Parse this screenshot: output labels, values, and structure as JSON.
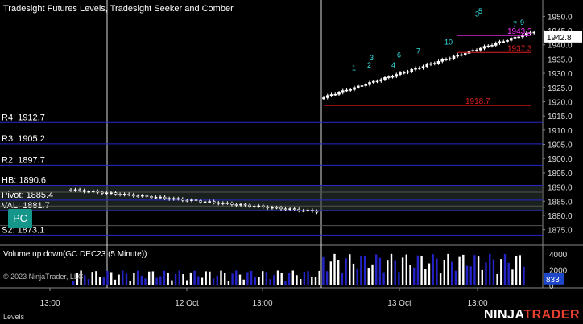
{
  "header": {
    "indicators_title": "Tradesight Futures Levels, Tradesight Seeker and Comber"
  },
  "volume_panel": {
    "title": "Volume up down(GC DEC23 (5 Minute))",
    "copyright": "© 2023 NinjaTrader, LLC"
  },
  "brand": {
    "left": "NINJA",
    "right": "TRADER"
  },
  "status_tab": "Levels",
  "pc_button": "PC",
  "colors": {
    "background": "#000000",
    "level_line": "#2828c8",
    "range_line": "#d21e1e",
    "volume_bar": "#2323c8",
    "brand_accent": "#e8402e",
    "pc_button": "#15968a",
    "last_price_bg": "#ffffff",
    "volume_tag_bg": "#1e46c8"
  },
  "chart_data": {
    "type": "candlestick",
    "instrument": "GC DEC23",
    "interval": "5 Minute",
    "price_axis": {
      "ticks": [
        1950.0,
        1945.0,
        1940.0,
        1935.0,
        1930.0,
        1925.0,
        1920.0,
        1915.0,
        1910.0,
        1905.0,
        1900.0,
        1895.0,
        1890.0,
        1885.0,
        1880.0,
        1875.0
      ],
      "range": [
        1871.5,
        1953.5
      ]
    },
    "time_axis": {
      "ticks": [
        "13:00",
        "12 Oct",
        "13:00",
        "13 Oct",
        "13:00"
      ]
    },
    "last_price": 1942.8,
    "levels": [
      {
        "label": "R4: 1912.7",
        "value": 1912.7
      },
      {
        "label": "R3: 1905.2",
        "value": 1905.2
      },
      {
        "label": "R2: 1897.7",
        "value": 1897.7
      },
      {
        "label": "HB: 1890.6",
        "value": 1890.6
      },
      {
        "label": "Pivot: 1885.4",
        "value": 1885.4
      },
      {
        "label": "VAL: 1881.7",
        "value": 1881.7
      },
      {
        "label": "S2: 1873.1",
        "value": 1873.1
      }
    ],
    "range_marks": [
      {
        "label": "1943.3",
        "value": 1943.3,
        "color": "#ff30ff"
      },
      {
        "label": "1937.3",
        "value": 1937.3,
        "color": "#e02020"
      },
      {
        "label": "1918.7",
        "value": 1918.7,
        "color": "#e02020"
      }
    ],
    "volume": {
      "ticks": [
        "4000",
        "2000",
        "0"
      ],
      "range": [
        0,
        4800
      ],
      "last_volume": "833"
    },
    "segments": [
      {
        "start_price": 1889.0,
        "bars": 56,
        "drift": -0.14
      },
      {
        "start_price": 1921.0,
        "bars": 56,
        "drift": 0.42
      }
    ]
  }
}
